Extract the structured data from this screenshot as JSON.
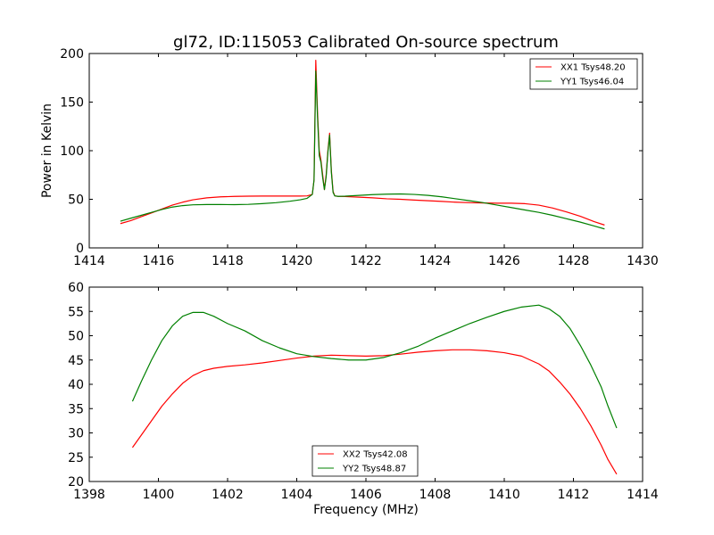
{
  "chart_data": [
    {
      "type": "line",
      "title": "gl72, ID:115053 Calibrated On-source spectrum",
      "xlabel": "",
      "ylabel": "Power in Kelvin",
      "xlim": [
        1414,
        1430
      ],
      "ylim": [
        0,
        200
      ],
      "xticks": [
        1414,
        1416,
        1418,
        1420,
        1422,
        1424,
        1426,
        1428,
        1430
      ],
      "yticks": [
        0,
        50,
        100,
        150,
        200
      ],
      "legend_position": "upper-right",
      "series": [
        {
          "name": "XX1 Tsys48.20",
          "color": "#ff0000",
          "x": [
            14.9,
            15.2,
            15.5,
            15.8,
            16.1,
            16.4,
            16.7,
            17.0,
            17.4,
            17.8,
            18.2,
            18.6,
            19.0,
            19.4,
            19.8,
            20.1,
            20.3,
            20.45,
            20.5,
            20.55,
            20.6,
            20.65,
            20.7,
            20.75,
            20.8,
            20.85,
            20.9,
            20.95,
            21.0,
            21.05,
            21.1,
            21.2,
            21.4,
            21.8,
            22.2,
            22.6,
            23.0,
            23.4,
            23.8,
            24.2,
            24.6,
            25.0,
            25.4,
            25.8,
            26.2,
            26.6,
            27.0,
            27.4,
            27.8,
            28.2,
            28.6,
            28.9
          ],
          "y": [
            25,
            28,
            32,
            36,
            40,
            44,
            47,
            49.5,
            51.5,
            52.5,
            53,
            53.2,
            53.3,
            53.3,
            53.3,
            53.3,
            53.5,
            55,
            70,
            193,
            140,
            100,
            90,
            75,
            60,
            75,
            100,
            118,
            80,
            58,
            53.5,
            53,
            52.8,
            52.2,
            51.5,
            50.5,
            50,
            49.2,
            48.5,
            47.8,
            47,
            46.5,
            46.2,
            46,
            46,
            45.5,
            44,
            41,
            37,
            32.5,
            27,
            23.5
          ]
        },
        {
          "name": "YY1 Tsys46.04",
          "color": "#008000",
          "x": [
            14.9,
            15.2,
            15.5,
            15.8,
            16.1,
            16.4,
            16.7,
            17.0,
            17.4,
            17.8,
            18.2,
            18.6,
            19.0,
            19.4,
            19.8,
            20.1,
            20.3,
            20.45,
            20.5,
            20.55,
            20.6,
            20.65,
            20.7,
            20.75,
            20.8,
            20.85,
            20.9,
            20.95,
            21.0,
            21.05,
            21.1,
            21.2,
            21.4,
            21.8,
            22.2,
            22.6,
            23.0,
            23.4,
            23.8,
            24.2,
            24.6,
            25.0,
            25.4,
            25.8,
            26.2,
            26.6,
            27.0,
            27.4,
            27.8,
            28.2,
            28.6,
            28.9
          ],
          "y": [
            27.5,
            30.5,
            33.5,
            36.5,
            39.5,
            42,
            43.5,
            44.3,
            44.6,
            44.6,
            44.5,
            44.8,
            45.5,
            46.5,
            48,
            49.5,
            51,
            55,
            70,
            182,
            135,
            95,
            88,
            72,
            60,
            73,
            98,
            116,
            78,
            57,
            53.5,
            53,
            53.2,
            54,
            54.8,
            55.3,
            55.5,
            55,
            54,
            52.5,
            50.5,
            48.5,
            46.5,
            44,
            41.5,
            39,
            36.5,
            33.5,
            30,
            26.5,
            22.5,
            19.5
          ]
        }
      ]
    },
    {
      "type": "line",
      "title": "",
      "xlabel": "Frequency (MHz)",
      "ylabel": "",
      "xlim": [
        1398,
        1414
      ],
      "ylim": [
        20,
        60
      ],
      "xticks": [
        1398,
        1400,
        1402,
        1404,
        1406,
        1408,
        1410,
        1412,
        1414
      ],
      "yticks": [
        20,
        25,
        30,
        35,
        40,
        45,
        50,
        55,
        60
      ],
      "legend_position": "lower-center",
      "series": [
        {
          "name": "XX2 Tsys42.08",
          "color": "#ff0000",
          "x": [
            1399.25,
            1399.5,
            1399.8,
            1400.1,
            1400.4,
            1400.7,
            1401.0,
            1401.3,
            1401.6,
            1402.0,
            1402.5,
            1403.0,
            1403.5,
            1404.0,
            1404.5,
            1405.0,
            1405.5,
            1406.0,
            1406.5,
            1407.0,
            1407.5,
            1408.0,
            1408.5,
            1409.0,
            1409.5,
            1410.0,
            1410.5,
            1411.0,
            1411.3,
            1411.6,
            1411.9,
            1412.2,
            1412.5,
            1412.8,
            1413.0,
            1413.25
          ],
          "y": [
            27,
            29.5,
            32.5,
            35.5,
            38,
            40.2,
            41.8,
            42.8,
            43.3,
            43.7,
            44,
            44.4,
            44.9,
            45.4,
            45.8,
            46,
            45.9,
            45.8,
            45.9,
            46.2,
            46.6,
            46.9,
            47.1,
            47.1,
            46.9,
            46.5,
            45.8,
            44.2,
            42.7,
            40.5,
            38,
            35,
            31.5,
            27.5,
            24.5,
            21.5
          ]
        },
        {
          "name": "YY2 Tsys48.87",
          "color": "#008000",
          "x": [
            1399.25,
            1399.5,
            1399.8,
            1400.1,
            1400.4,
            1400.7,
            1401.0,
            1401.3,
            1401.6,
            1402.0,
            1402.5,
            1403.0,
            1403.5,
            1404.0,
            1404.5,
            1405.0,
            1405.5,
            1406.0,
            1406.5,
            1407.0,
            1407.5,
            1408.0,
            1408.5,
            1409.0,
            1409.5,
            1410.0,
            1410.5,
            1411.0,
            1411.3,
            1411.6,
            1411.9,
            1412.2,
            1412.5,
            1412.8,
            1413.0,
            1413.25
          ],
          "y": [
            36.5,
            40.5,
            45,
            49,
            52,
            54,
            54.8,
            54.8,
            54,
            52.5,
            51,
            49,
            47.5,
            46.3,
            45.7,
            45.3,
            45,
            45,
            45.5,
            46.5,
            47.8,
            49.5,
            51,
            52.5,
            53.8,
            55,
            55.9,
            56.3,
            55.5,
            54,
            51.5,
            48,
            44,
            39.5,
            35.5,
            31
          ]
        }
      ]
    }
  ]
}
